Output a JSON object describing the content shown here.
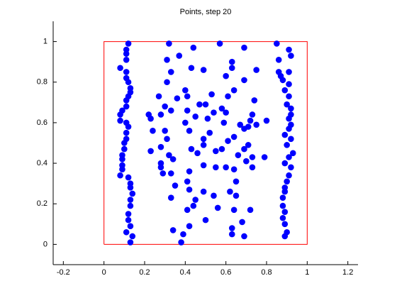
{
  "chart_data": {
    "type": "scatter",
    "title": "Points, step 20",
    "xlim": [
      -0.25,
      1.25
    ],
    "ylim": [
      -0.1,
      1.1
    ],
    "xticks": [
      -0.2,
      0,
      0.2,
      0.4,
      0.6,
      0.8,
      1,
      1.2
    ],
    "yticks": [
      0,
      0.2,
      0.4,
      0.6,
      0.8,
      1
    ],
    "color": "#0000ff",
    "boundary": {
      "x": [
        0,
        1,
        1,
        0,
        0
      ],
      "y": [
        0,
        0,
        1,
        1,
        0
      ],
      "color": "#ff0000"
    },
    "x": [
      0.12,
      0.11,
      0.11,
      0.11,
      0.08,
      0.11,
      0.11,
      0.12,
      0.13,
      0.13,
      0.12,
      0.11,
      0.11,
      0.09,
      0.08,
      0.08,
      0.11,
      0.12,
      0.11,
      0.11,
      0.1,
      0.1,
      0.09,
      0.09,
      0.09,
      0.09,
      0.08,
      0.12,
      0.13,
      0.13,
      0.14,
      0.13,
      0.13,
      0.12,
      0.12,
      0.13,
      0.11,
      0.14,
      0.13,
      0.85,
      0.91,
      0.92,
      0.86,
      0.86,
      0.87,
      0.91,
      0.88,
      0.91,
      0.89,
      0.91,
      0.9,
      0.92,
      0.92,
      0.91,
      0.92,
      0.91,
      0.89,
      0.92,
      0.9,
      0.93,
      0.91,
      0.89,
      0.92,
      0.91,
      0.9,
      0.89,
      0.89,
      0.88,
      0.88,
      0.89,
      0.88,
      0.89,
      0.9,
      0.89,
      0.32,
      0.44,
      0.57,
      0.69,
      0.37,
      0.31,
      0.63,
      0.63,
      0.75,
      0.33,
      0.43,
      0.49,
      0.31,
      0.6,
      0.69,
      0.4,
      0.41,
      0.36,
      0.27,
      0.47,
      0.3,
      0.64,
      0.53,
      0.61,
      0.74,
      0.22,
      0.28,
      0.33,
      0.58,
      0.6,
      0.54,
      0.5,
      0.45,
      0.23,
      0.41,
      0.73,
      0.69,
      0.71,
      0.75,
      0.8,
      0.72,
      0.67,
      0.59,
      0.51,
      0.4,
      0.24,
      0.3,
      0.31,
      0.42,
      0.52,
      0.49,
      0.49,
      0.43,
      0.46,
      0.55,
      0.58,
      0.61,
      0.64,
      0.66,
      0.69,
      0.71,
      0.7,
      0.73,
      0.73,
      0.79,
      0.23,
      0.28,
      0.32,
      0.34,
      0.28,
      0.28,
      0.33,
      0.29,
      0.42,
      0.49,
      0.55,
      0.6,
      0.64,
      0.65,
      0.62,
      0.65,
      0.54,
      0.49,
      0.41,
      0.35,
      0.42,
      0.45,
      0.44,
      0.41,
      0.33,
      0.56,
      0.64,
      0.72,
      0.68,
      0.63,
      0.63,
      0.69,
      0.42,
      0.39,
      0.34,
      0.38,
      0.5
    ],
    "values": [
      0.99,
      0.96,
      0.94,
      0.91,
      0.87,
      0.85,
      0.82,
      0.8,
      0.77,
      0.75,
      0.73,
      0.71,
      0.68,
      0.66,
      0.64,
      0.61,
      0.6,
      0.58,
      0.55,
      0.52,
      0.5,
      0.47,
      0.44,
      0.42,
      0.39,
      0.37,
      0.34,
      0.33,
      0.3,
      0.28,
      0.25,
      0.22,
      0.19,
      0.15,
      0.12,
      0.09,
      0.06,
      0.04,
      0.01,
      0.99,
      0.96,
      0.93,
      0.91,
      0.85,
      0.83,
      0.85,
      0.81,
      0.79,
      0.76,
      0.73,
      0.69,
      0.67,
      0.64,
      0.62,
      0.59,
      0.57,
      0.54,
      0.52,
      0.49,
      0.45,
      0.43,
      0.4,
      0.38,
      0.34,
      0.31,
      0.28,
      0.26,
      0.23,
      0.19,
      0.16,
      0.13,
      0.1,
      0.06,
      0.04,
      0.99,
      0.97,
      0.99,
      0.97,
      0.93,
      0.91,
      0.9,
      0.87,
      0.86,
      0.85,
      0.87,
      0.86,
      0.8,
      0.83,
      0.81,
      0.76,
      0.73,
      0.72,
      0.73,
      0.69,
      0.68,
      0.76,
      0.74,
      0.73,
      0.71,
      0.64,
      0.64,
      0.66,
      0.67,
      0.65,
      0.65,
      0.69,
      0.63,
      0.62,
      0.66,
      0.64,
      0.57,
      0.58,
      0.59,
      0.61,
      0.61,
      0.59,
      0.6,
      0.62,
      0.6,
      0.56,
      0.56,
      0.52,
      0.56,
      0.55,
      0.52,
      0.49,
      0.47,
      0.45,
      0.46,
      0.47,
      0.51,
      0.53,
      0.44,
      0.47,
      0.49,
      0.41,
      0.43,
      0.38,
      0.43,
      0.46,
      0.48,
      0.44,
      0.42,
      0.4,
      0.38,
      0.35,
      0.35,
      0.36,
      0.39,
      0.38,
      0.38,
      0.37,
      0.31,
      0.26,
      0.24,
      0.24,
      0.26,
      0.31,
      0.29,
      0.27,
      0.22,
      0.19,
      0.17,
      0.23,
      0.18,
      0.17,
      0.17,
      0.11,
      0.08,
      0.05,
      0.04,
      0.09,
      0.05,
      0.07,
      0.01,
      0.12
    ]
  }
}
